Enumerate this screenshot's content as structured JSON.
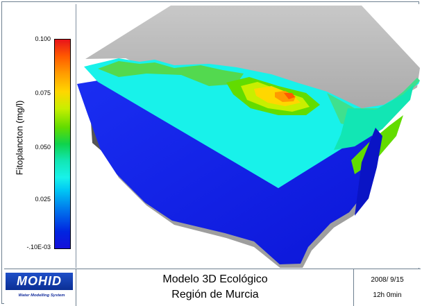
{
  "legend": {
    "label": "Fitoplancton  (mg/l)",
    "ticks": [
      {
        "value": "0.100"
      },
      {
        "value": "0.075"
      },
      {
        "value": "0.050"
      },
      {
        "value": "0.025"
      },
      {
        "value": "-.10E-03"
      }
    ]
  },
  "footer": {
    "logo_text": "MOHID",
    "logo_tagline": "Water Modelling System",
    "title_line1": "Modelo 3D Ecológico",
    "title_line2": "Región de Murcia",
    "date": "2008/ 9/15",
    "time": "12h 0min"
  },
  "colors": {
    "land": "#b8b8b8",
    "shelf": "#6f6f6f",
    "water_body": "#1625ea",
    "shallow": "#18f2ea",
    "mid": "#62dc00",
    "high": "#ffd700",
    "peak": "#ff5a00"
  }
}
